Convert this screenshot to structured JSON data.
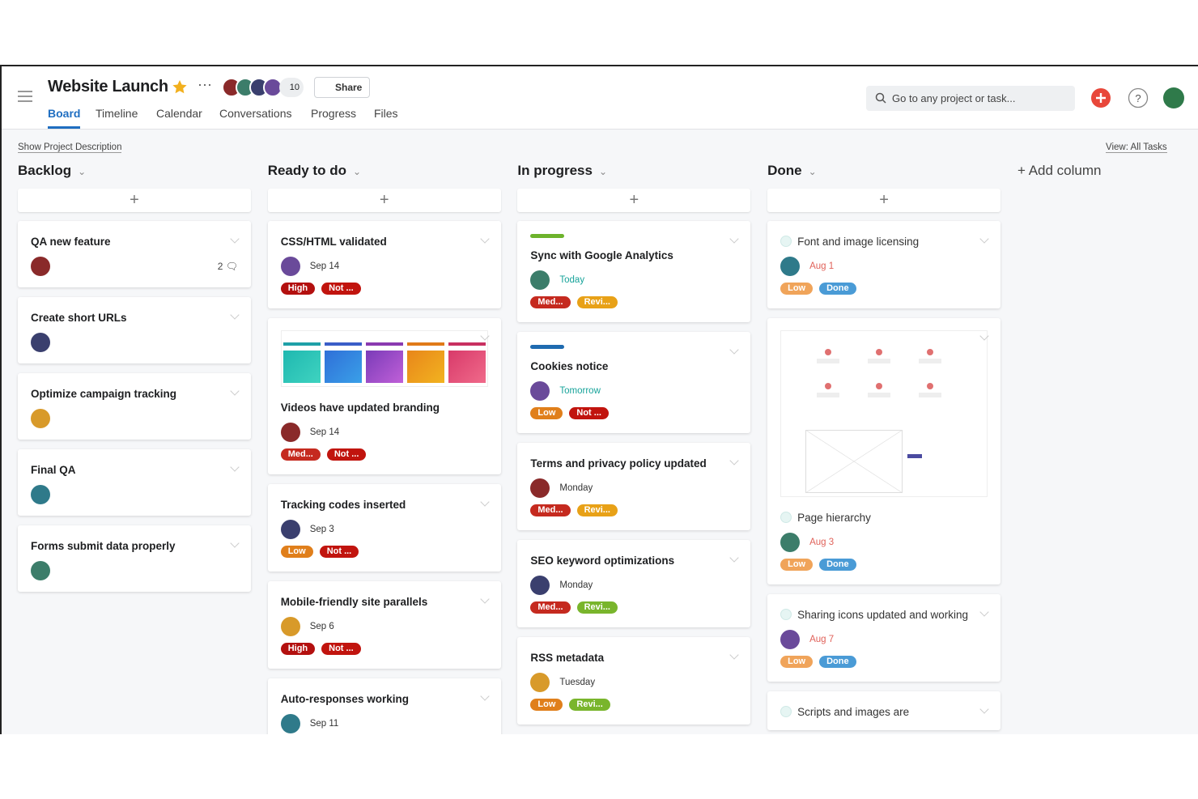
{
  "header": {
    "title": "Website Launch",
    "member_count": "10",
    "share": "Share",
    "tabs": [
      "Board",
      "Timeline",
      "Calendar",
      "Conversations",
      "Progress",
      "Files"
    ],
    "search": "Go to any project or task..."
  },
  "toolbar": {
    "show_description": "Show Project Description",
    "view": "View: All Tasks"
  },
  "add_column": "+ Add column",
  "columns": [
    {
      "name": "Backlog",
      "cards": [
        {
          "title": "QA new feature",
          "comments": "2"
        },
        {
          "title": "Create short URLs"
        },
        {
          "title": "Optimize campaign tracking"
        },
        {
          "title": "Final QA"
        },
        {
          "title": "Forms submit data properly"
        }
      ]
    },
    {
      "name": "Ready to do",
      "cards": [
        {
          "title": "CSS/HTML validated",
          "date": "Sep 14",
          "tags": [
            {
              "label": "High",
              "color": "#b3100f"
            },
            {
              "label": "Not ...",
              "color": "#c1140e"
            }
          ]
        },
        {
          "title": "Videos have updated branding",
          "date": "Sep 14",
          "tags": [
            {
              "label": "Med...",
              "color": "#c52a1f"
            },
            {
              "label": "Not ...",
              "color": "#c1140e"
            }
          ]
        },
        {
          "title": "Tracking codes inserted",
          "date": "Sep 3",
          "tags": [
            {
              "label": "Low",
              "color": "#e07f1b"
            },
            {
              "label": "Not ...",
              "color": "#c1140e"
            }
          ]
        },
        {
          "title": "Mobile-friendly site parallels",
          "date": "Sep 6",
          "tags": [
            {
              "label": "High",
              "color": "#b3100f"
            },
            {
              "label": "Not ...",
              "color": "#c1140e"
            }
          ]
        },
        {
          "title": "Auto-responses working",
          "date": "Sep 11"
        }
      ]
    },
    {
      "name": "In progress",
      "cards": [
        {
          "title": "Sync with Google Analytics",
          "color": "#6db32c",
          "date": "Today",
          "date_color": "#17a39a",
          "tags": [
            {
              "label": "Med...",
              "color": "#c52a1f"
            },
            {
              "label": "Revi...",
              "color": "#e8a117"
            }
          ]
        },
        {
          "title": "Cookies notice",
          "color": "#1f6bb0",
          "date": "Tomorrow",
          "date_color": "#17a39a",
          "tags": [
            {
              "label": "Low",
              "color": "#e07f1b"
            },
            {
              "label": "Not ...",
              "color": "#c1140e"
            }
          ]
        },
        {
          "title": "Terms and privacy policy updated",
          "date": "Monday",
          "tags": [
            {
              "label": "Med...",
              "color": "#c52a1f"
            },
            {
              "label": "Revi...",
              "color": "#e8a117"
            }
          ]
        },
        {
          "title": "SEO keyword optimizations",
          "date": "Monday",
          "tags": [
            {
              "label": "Med...",
              "color": "#c52a1f"
            },
            {
              "label": "Revi...",
              "color": "#79b52c"
            }
          ]
        },
        {
          "title": "RSS metadata",
          "date": "Tuesday",
          "tags": [
            {
              "label": "Low",
              "color": "#e07f1b"
            },
            {
              "label": "Revi...",
              "color": "#79b52c"
            }
          ]
        }
      ]
    },
    {
      "name": "Done",
      "cards": [
        {
          "title": "Font and image licensing",
          "date": "Aug 1",
          "date_color": "#e0625a",
          "tags": [
            {
              "label": "Low",
              "color": "#f0a45a"
            },
            {
              "label": "Done",
              "color": "#4a9bd6"
            }
          ]
        },
        {
          "title": "Page hierarchy",
          "date": "Aug 3",
          "date_color": "#e0625a",
          "tags": [
            {
              "label": "Low",
              "color": "#f0a45a"
            },
            {
              "label": "Done",
              "color": "#4a9bd6"
            }
          ]
        },
        {
          "title": "Sharing icons updated and working",
          "date": "Aug 7",
          "date_color": "#e0625a",
          "tags": [
            {
              "label": "Low",
              "color": "#f0a45a"
            },
            {
              "label": "Done",
              "color": "#4a9bd6"
            }
          ]
        },
        {
          "title": "Scripts and images are"
        }
      ]
    }
  ]
}
